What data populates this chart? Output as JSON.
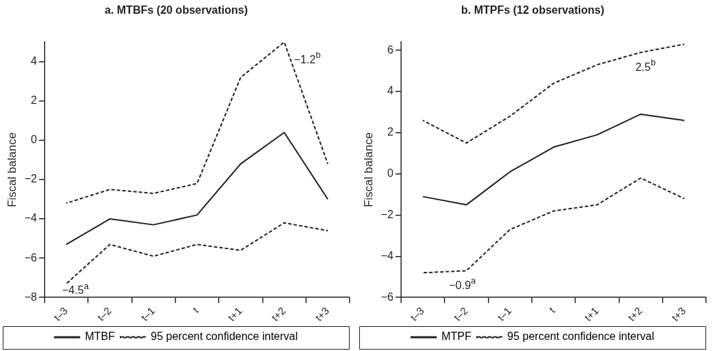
{
  "chart_data": [
    {
      "type": "line",
      "title": "a. MTBFs (20 observations)",
      "ylabel": "Fiscal balance",
      "categories": [
        "t–3",
        "t–2",
        "t–1",
        "t",
        "t+1",
        "t+2",
        "t+3"
      ],
      "ylim": [
        -8,
        5
      ],
      "yticks": [
        -8,
        -6,
        -4,
        -2,
        0,
        2,
        4
      ],
      "grid": false,
      "legend": "bottom",
      "marker": "none",
      "series": [
        {
          "name": "MTBF",
          "color": "#231f20",
          "line_style": "solid",
          "values": [
            -5.3,
            -4.0,
            -4.3,
            -3.8,
            -1.2,
            0.4,
            -3.0
          ]
        },
        {
          "name": "95 percent confidence interval",
          "color": "#231f20",
          "line_style": "dashed",
          "values": [
            -3.2,
            -2.5,
            -2.7,
            -2.2,
            3.2,
            5.0,
            -1.2
          ]
        },
        {
          "color": "#231f20",
          "line_style": "dashed",
          "values": [
            -7.3,
            -5.3,
            -5.9,
            -5.3,
            -5.6,
            -4.2,
            -4.6
          ]
        }
      ],
      "annotations": [
        "−4.5$^{a}$",
        "−1.2$^{b}$"
      ]
    },
    {
      "type": "line",
      "title": "b. MTPFs (12 observations)",
      "ylabel": "Fiscal balance",
      "categories": [
        "t–3",
        "t–2",
        "t–1",
        "t",
        "t+1",
        "t+2",
        "t+3"
      ],
      "ylim": [
        -6,
        6.4
      ],
      "yticks": [
        -6,
        -4,
        -2,
        0,
        2,
        4,
        6
      ],
      "grid": false,
      "legend": "bottom",
      "marker": "none",
      "series": [
        {
          "name": "MTPF",
          "color": "#231f20",
          "line_style": "solid",
          "values": [
            -1.1,
            -1.5,
            0.1,
            1.3,
            1.9,
            2.9,
            2.6
          ]
        },
        {
          "name": "95 percent confidence interval",
          "color": "#231f20",
          "line_style": "dashed",
          "values": [
            2.6,
            1.5,
            2.8,
            4.4,
            5.3,
            5.9,
            6.3
          ]
        },
        {
          "color": "#231f20",
          "line_style": "dashed",
          "values": [
            -4.8,
            -4.7,
            -2.7,
            -1.8,
            -1.5,
            -0.2,
            -1.2
          ]
        }
      ],
      "annotations": [
        "−0.9$^{a}$",
        "2.5$^{b}$"
      ]
    }
  ]
}
